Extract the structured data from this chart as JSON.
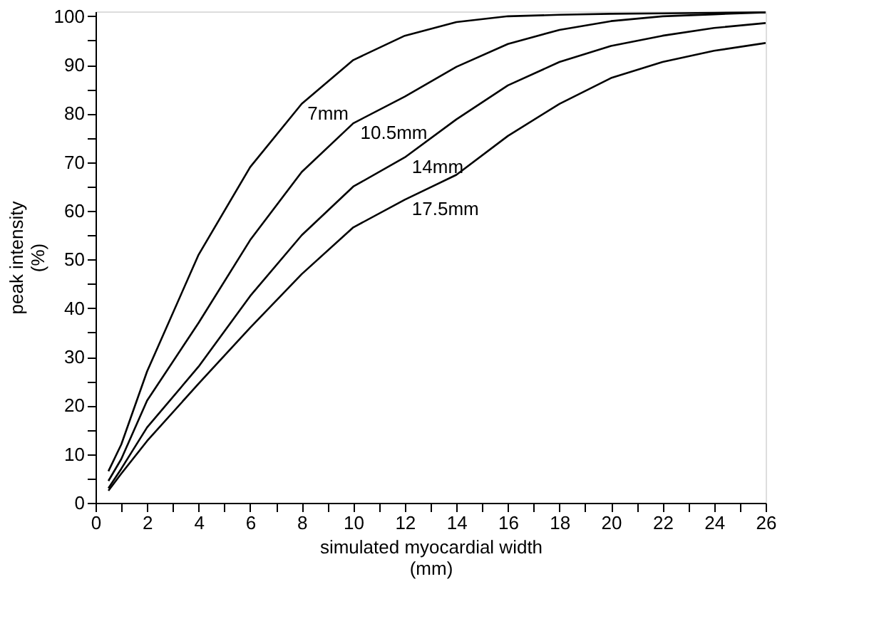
{
  "chart_data": {
    "type": "line",
    "xlabel": "simulated myocardial width\n(mm)",
    "ylabel": "peak intensity\n(%)",
    "xlim": [
      0,
      26
    ],
    "ylim": [
      0,
      101
    ],
    "xticks": [
      0,
      {
        "value": 1,
        "label": null
      },
      2,
      {
        "value": 3,
        "label": null
      },
      4,
      {
        "value": 5,
        "label": null
      },
      6,
      {
        "value": 7,
        "label": null
      },
      8,
      {
        "value": 9,
        "label": null
      },
      10,
      {
        "value": 11,
        "label": null
      },
      12,
      {
        "value": 13,
        "label": null
      },
      14,
      {
        "value": 15,
        "label": null
      },
      16,
      {
        "value": 17,
        "label": null
      },
      18,
      {
        "value": 19,
        "label": null
      },
      20,
      {
        "value": 21,
        "label": null
      },
      22,
      {
        "value": 23,
        "label": null
      },
      24,
      {
        "value": 25,
        "label": null
      },
      26
    ],
    "yticks": [
      0,
      {
        "value": 5,
        "label": null
      },
      10,
      {
        "value": 15,
        "label": null
      },
      20,
      {
        "value": 25,
        "label": null
      },
      30,
      {
        "value": 35,
        "label": null
      },
      40,
      {
        "value": 45,
        "label": null
      },
      50,
      {
        "value": 55,
        "label": null
      },
      60,
      {
        "value": 65,
        "label": null
      },
      70,
      {
        "value": 75,
        "label": null
      },
      80,
      {
        "value": 85,
        "label": null
      },
      90,
      {
        "value": 95,
        "label": null
      },
      100
    ],
    "x": [
      0.5,
      1,
      2,
      4,
      6,
      8,
      10,
      12,
      14,
      16,
      18,
      20,
      22,
      24,
      26
    ],
    "series": [
      {
        "name": "7mm",
        "color": "#000000",
        "values": [
          6.5,
          12,
          27,
          51,
          69,
          82,
          91,
          96,
          98.8,
          100,
          100.3,
          100.5,
          100.6,
          100.7,
          100.8
        ]
      },
      {
        "name": "10.5mm",
        "color": "#000000",
        "values": [
          4.5,
          9,
          21,
          37,
          54,
          68,
          78,
          83.5,
          89.6,
          94.3,
          97.2,
          99,
          100,
          100.4,
          100.8
        ]
      },
      {
        "name": "14mm",
        "color": "#000000",
        "values": [
          3,
          7,
          15.5,
          28,
          42.5,
          55,
          65,
          71,
          78.8,
          85.8,
          90.6,
          93.9,
          96,
          97.6,
          98.6
        ]
      },
      {
        "name": "17.5mm",
        "color": "#000000",
        "values": [
          2.5,
          6,
          12.7,
          24.5,
          36,
          47,
          56.6,
          62.3,
          67.4,
          75.4,
          82,
          87.3,
          90.6,
          92.9,
          94.5
        ]
      }
    ],
    "legend": false,
    "grid": false,
    "marker": "none",
    "line_style": "solid"
  }
}
